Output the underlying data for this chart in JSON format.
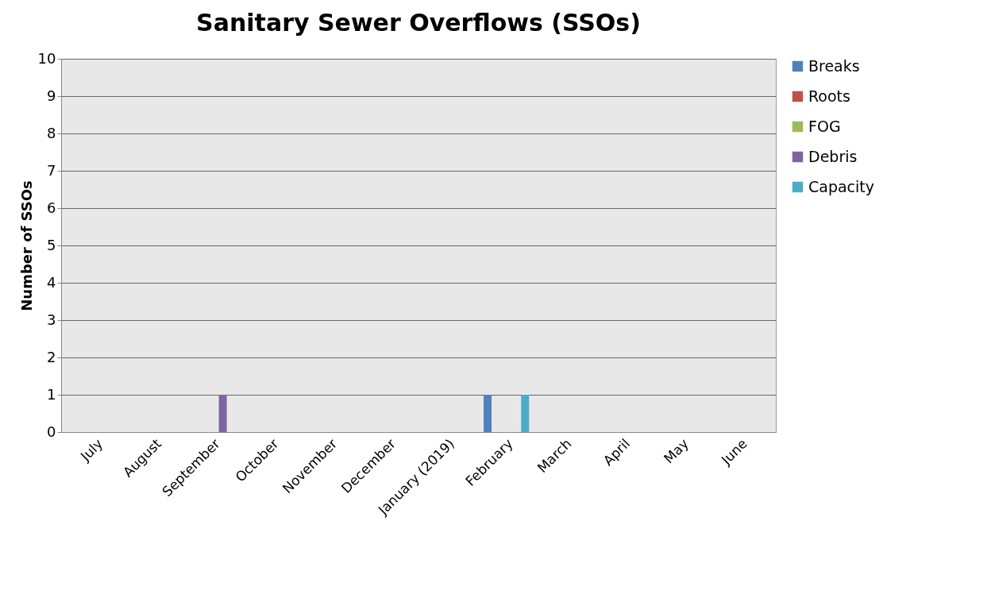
{
  "chart_data": {
    "type": "bar",
    "title": "Sanitary Sewer Overflows (SSOs)",
    "ylabel": "Number of SSOs",
    "categories": [
      "July",
      "August",
      "September",
      "October",
      "November",
      "December",
      "January (2019)",
      "February",
      "March",
      "April",
      "May",
      "June"
    ],
    "series": [
      {
        "name": "Breaks",
        "color": "#4f81bd",
        "values": [
          0,
          0,
          0,
          0,
          0,
          0,
          0,
          1,
          0,
          0,
          0,
          0
        ]
      },
      {
        "name": "Roots",
        "color": "#c0504d",
        "values": [
          0,
          0,
          0,
          0,
          0,
          0,
          0,
          0,
          0,
          0,
          0,
          0
        ]
      },
      {
        "name": "FOG",
        "color": "#9bbb59",
        "values": [
          0,
          0,
          0,
          0,
          0,
          0,
          0,
          0,
          0,
          0,
          0,
          0
        ]
      },
      {
        "name": "Debris",
        "color": "#8064a2",
        "values": [
          0,
          0,
          1,
          0,
          0,
          0,
          0,
          0,
          0,
          0,
          0,
          0
        ]
      },
      {
        "name": "Capacity",
        "color": "#4bacc6",
        "values": [
          0,
          0,
          0,
          0,
          0,
          0,
          0,
          1,
          0,
          0,
          0,
          0
        ]
      }
    ],
    "ylim": [
      0,
      10
    ],
    "yticks": [
      0,
      1,
      2,
      3,
      4,
      5,
      6,
      7,
      8,
      9,
      10
    ],
    "grid": "y",
    "legend": "right"
  }
}
